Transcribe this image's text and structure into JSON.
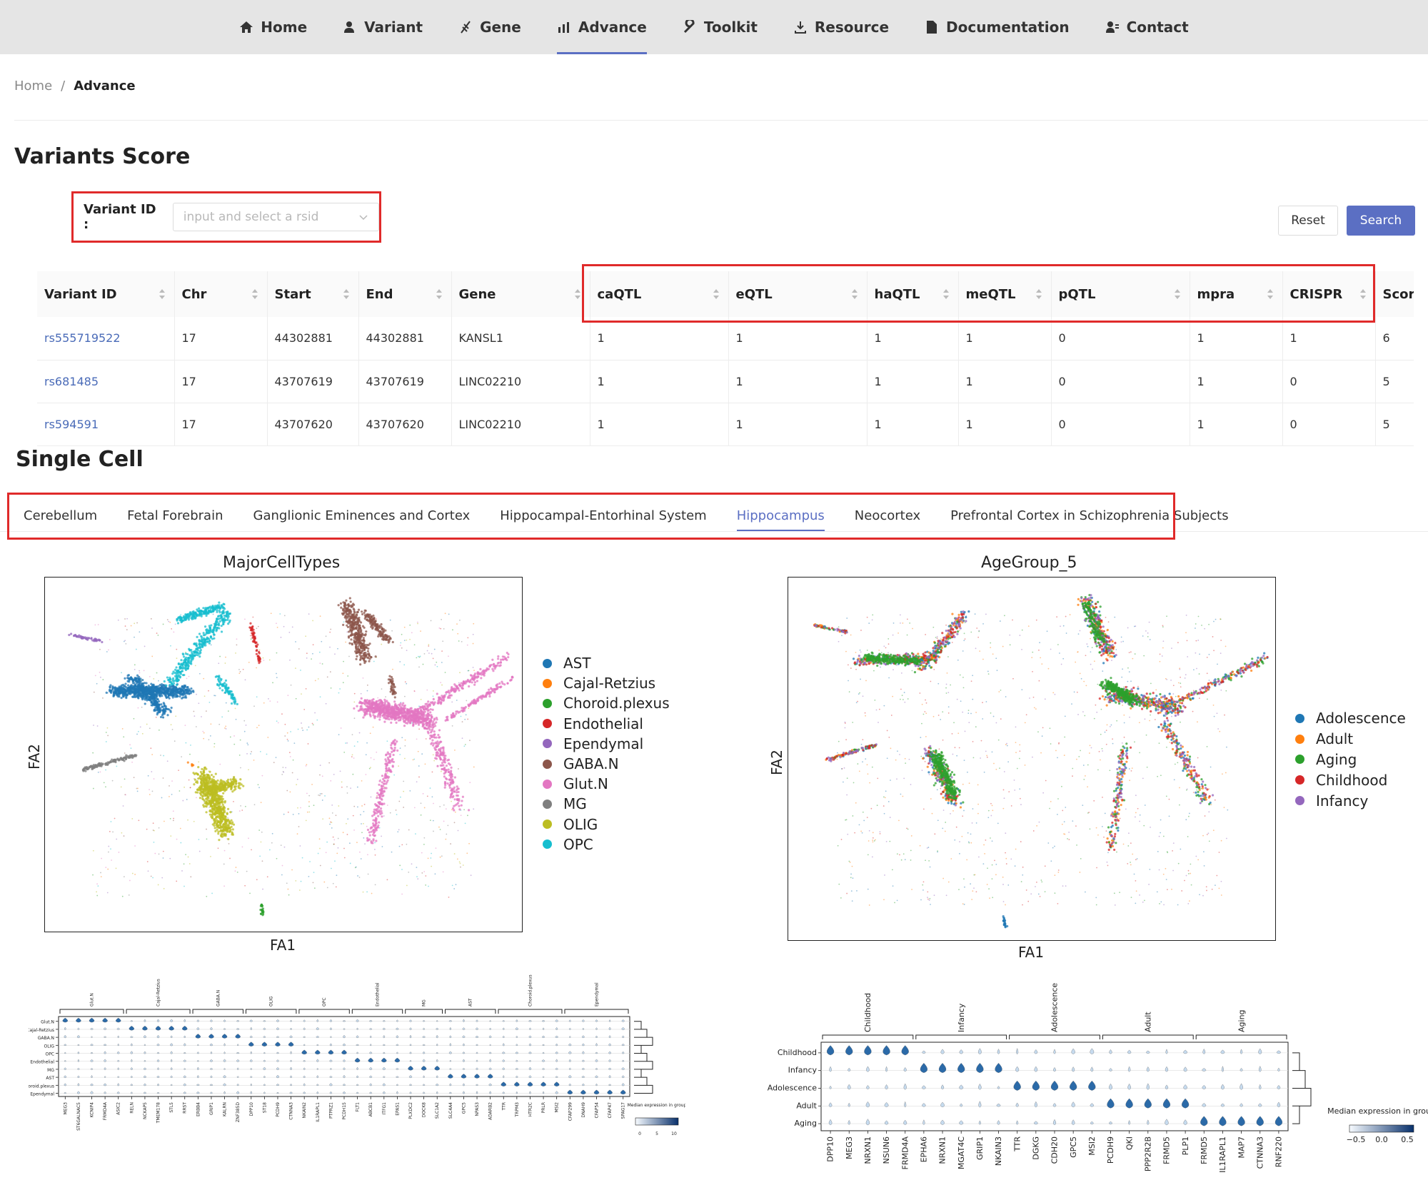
{
  "nav": {
    "items": [
      {
        "label": "Home",
        "icon": "home-icon"
      },
      {
        "label": "Variant",
        "icon": "user-icon"
      },
      {
        "label": "Gene",
        "icon": "dna-icon"
      },
      {
        "label": "Advance",
        "icon": "chart-icon",
        "active": true
      },
      {
        "label": "Toolkit",
        "icon": "wrench-icon"
      },
      {
        "label": "Resource",
        "icon": "download-icon"
      },
      {
        "label": "Documentation",
        "icon": "document-icon"
      },
      {
        "label": "Contact",
        "icon": "contact-icon"
      }
    ]
  },
  "breadcrumb": {
    "home": "Home",
    "sep": "/",
    "current": "Advance"
  },
  "variants": {
    "title": "Variants Score",
    "search_label": "Variant ID :",
    "search_placeholder": "input and select a rsid",
    "reset_label": "Reset",
    "search_button": "Search"
  },
  "table": {
    "columns": [
      "Variant ID",
      "Chr",
      "Start",
      "End",
      "Gene",
      "caQTL",
      "eQTL",
      "haQTL",
      "meQTL",
      "pQTL",
      "mpra",
      "CRISPR",
      "Score"
    ],
    "rows": [
      [
        "rs555719522",
        "17",
        "44302881",
        "44302881",
        "KANSL1",
        "1",
        "1",
        "1",
        "1",
        "0",
        "1",
        "1",
        "6"
      ],
      [
        "rs681485",
        "17",
        "43707619",
        "43707619",
        "LINC02210",
        "1",
        "1",
        "1",
        "1",
        "0",
        "1",
        "0",
        "5"
      ],
      [
        "rs594591",
        "17",
        "43707620",
        "43707620",
        "LINC02210",
        "1",
        "1",
        "1",
        "1",
        "0",
        "1",
        "0",
        "5"
      ]
    ]
  },
  "single_cell": {
    "title": "Single Cell",
    "tabs": [
      "Cerebellum",
      "Fetal Forebrain",
      "Ganglionic Eminences and Cortex",
      "Hippocampal-Entorhinal System",
      "Hippocampus",
      "Neocortex",
      "Prefrontal Cortex in Schizophrenia Subjects"
    ],
    "active_tab": "Hippocampus"
  },
  "colors": {
    "accent": "#5b6fc3",
    "highlight": "#e02a2a",
    "AST": "#1f77b4",
    "Cajal-Retzius": "#ff7f0e",
    "Choroid.plexus": "#2ca02c",
    "Endothelial": "#d62728",
    "Ependymal": "#9467bd",
    "GABA.N": "#8c564b",
    "Glut.N": "#e377c2",
    "MG": "#7f7f7f",
    "OLIG": "#bcbd22",
    "OPC": "#17becf"
  },
  "chart_data": [
    {
      "type": "scatter",
      "title": "MajorCellTypes",
      "xlabel": "FA1",
      "ylabel": "FA2",
      "legend": [
        "AST",
        "Cajal-Retzius",
        "Choroid.plexus",
        "Endothelial",
        "Ependymal",
        "GABA.N",
        "Glut.N",
        "MG",
        "OLIG",
        "OPC"
      ],
      "legend_placement": "right"
    },
    {
      "type": "scatter",
      "title": "AgeGroup_5",
      "xlabel": "FA1",
      "ylabel": "FA2",
      "legend": [
        "Adolescence",
        "Adult",
        "Aging",
        "Childhood",
        "Infancy"
      ],
      "legend_colors": [
        "#1f77b4",
        "#ff7f0e",
        "#2ca02c",
        "#d62728",
        "#9467bd"
      ],
      "legend_placement": "right"
    },
    {
      "type": "heatmap",
      "subtype": "stacked-violin",
      "groups": [
        "Glut.N",
        "Cajal-Retzius",
        "GABA.N",
        "OLIG",
        "OPC",
        "Endothelial",
        "MG",
        "AST",
        "Choroid.plexus",
        "Ependymal"
      ],
      "rows": [
        "Glut.N",
        "Cajal-Retzius",
        "GABA.N",
        "OLIG",
        "OPC",
        "Endothelial",
        "MG",
        "AST",
        "Choroid.plexus",
        "Ependymal"
      ],
      "genes": [
        "MEG3",
        "ST6GALNAC5",
        "KCNIP4",
        "FRMD4A",
        "ASIC2",
        "RELN",
        "NCKAP5",
        "TMEM178",
        "STL5",
        "RRST",
        "ERBB4",
        "GRIP1",
        "KALRN",
        "ZNF385D",
        "DPP10",
        "ST18",
        "PCDH9",
        "CTNNA3",
        "NKAIN2",
        "IL1RAPL1",
        "PTPRZ1",
        "PCDH15",
        "FLT1",
        "ABCB1",
        "ITFG1",
        "EPAS1",
        "PLXDC2",
        "DOCK8",
        "SLC1A2",
        "SLC4A4",
        "GPC5",
        "NPAS3",
        "ADARB2",
        "TTR",
        "TRPM3",
        "HTR2C",
        "PRLR",
        "MSI2",
        "CFAP299",
        "DNAH9",
        "CFAP54",
        "CFAP47",
        "SPAG17"
      ],
      "colorbar_label": "Median expression in group",
      "colorbar_ticks": [
        "0",
        "5",
        "10"
      ]
    },
    {
      "type": "heatmap",
      "subtype": "stacked-violin",
      "groups": [
        "Childhood",
        "Infancy",
        "Adolescence",
        "Adult",
        "Aging"
      ],
      "rows": [
        "Childhood",
        "Infancy",
        "Adolescence",
        "Adult",
        "Aging"
      ],
      "genes": [
        "DPP10",
        "MEG3",
        "NRXN1",
        "NSUN6",
        "FRMD4A",
        "EPHA6",
        "NRXN1",
        "MGAT4C",
        "GRIP1",
        "NKAIN3",
        "TTR",
        "DGKG",
        "CDH20",
        "GPC5",
        "MSI2",
        "PCDH9",
        "QKI",
        "PPP2R2B",
        "FRMD5",
        "PLP1",
        "FRMD5",
        "IL1RAPL1",
        "MAP7",
        "CTNNA3",
        "RNF220"
      ],
      "colorbar_label": "Median expression in group",
      "colorbar_ticks": [
        "−0.5",
        "0.0",
        "0.5"
      ]
    }
  ]
}
